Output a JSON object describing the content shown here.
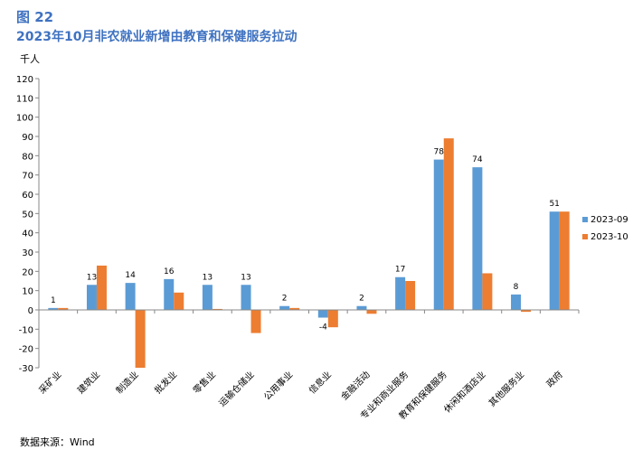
{
  "figure_label": "图 22",
  "title": "2023年10月非农就业新增由教育和保健服务拉动",
  "source": "数据来源：Wind",
  "chart_data": {
    "type": "bar",
    "ylabel": "千人",
    "ylim": [
      -30,
      120
    ],
    "yticks": [
      -30,
      -20,
      -10,
      0,
      10,
      20,
      30,
      40,
      50,
      60,
      70,
      80,
      90,
      100,
      110,
      120
    ],
    "grid": false,
    "legend_position": "right",
    "categories": [
      "采矿业",
      "建筑业",
      "制造业",
      "批发业",
      "零售业",
      "运输仓储业",
      "公用事业",
      "信息业",
      "金融活动",
      "专业和商业服务",
      "教育和保健服务",
      "休闲和酒店业",
      "其他服务业",
      "政府"
    ],
    "series": [
      {
        "name": "2023-09",
        "color": "#5b9bd5",
        "values": [
          1,
          13,
          14,
          16,
          13,
          13,
          2,
          -4,
          2,
          17,
          78,
          74,
          8,
          51
        ]
      },
      {
        "name": "2023-10",
        "color": "#ed7d31",
        "values": [
          1,
          23,
          -30,
          9,
          0.5,
          -12,
          1,
          -9,
          -2,
          15,
          89,
          19,
          -1,
          51
        ]
      }
    ],
    "data_labels": [
      "1",
      "13",
      "14",
      "16",
      "13",
      "13",
      "2",
      "-4",
      "2",
      "17",
      "78",
      "74",
      "8",
      "51"
    ]
  }
}
